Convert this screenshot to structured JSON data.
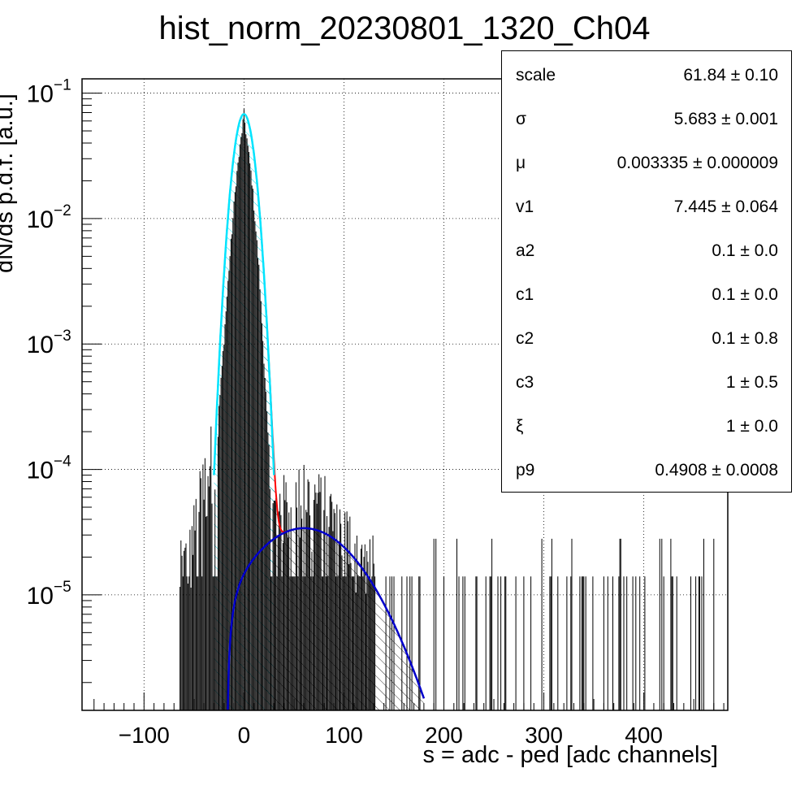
{
  "chart_data": {
    "type": "histogram",
    "title": "hist_norm_20230801_1320_Ch04",
    "xlabel": "s = adc - ped [adc channels]",
    "ylabel": "dN/ds p.d.f. [a.u.]",
    "xlim": [
      -162,
      484
    ],
    "ylim": [
      1.2e-06,
      0.13
    ],
    "yscale": "log",
    "grid": true,
    "x_ticks": [
      "-100",
      "0",
      "100",
      "200",
      "300",
      "400"
    ],
    "y_ticks": [
      {
        "base": "10",
        "exp": "−1"
      },
      {
        "base": "10",
        "exp": "−2"
      },
      {
        "base": "10",
        "exp": "−3"
      },
      {
        "base": "10",
        "exp": "−4"
      },
      {
        "base": "10",
        "exp": "−5"
      }
    ],
    "pedestal_peak": {
      "x": 0,
      "y": 0.068,
      "sigma": 5.683
    },
    "signal_peak": {
      "x": 60,
      "y": 3.4e-05
    },
    "histogram_profile": [
      {
        "x": -65,
        "y": 1.4e-05
      },
      {
        "x": -55,
        "y": 1.8e-05
      },
      {
        "x": -45,
        "y": 5e-05
      },
      {
        "x": -35,
        "y": 0.0001
      },
      {
        "x": -25,
        "y": 0.0003
      },
      {
        "x": -15,
        "y": 0.004
      },
      {
        "x": -8,
        "y": 0.02
      },
      {
        "x": 0,
        "y": 0.068
      },
      {
        "x": 8,
        "y": 0.02
      },
      {
        "x": 15,
        "y": 0.004
      },
      {
        "x": 22,
        "y": 0.0004
      },
      {
        "x": 28,
        "y": 4e-05
      },
      {
        "x": 40,
        "y": 5e-05
      },
      {
        "x": 60,
        "y": 6e-05
      },
      {
        "x": 80,
        "y": 5e-05
      },
      {
        "x": 100,
        "y": 3e-05
      },
      {
        "x": 120,
        "y": 2e-05
      },
      {
        "x": 140,
        "y": 1.4e-05
      },
      {
        "x": 160,
        "y": 1.4e-05
      },
      {
        "x": 200,
        "y": 1.4e-05
      },
      {
        "x": 270,
        "y": 1.4e-05
      },
      {
        "x": 370,
        "y": 1.4e-05
      },
      {
        "x": 480,
        "y": 1.4e-05
      }
    ],
    "series": [
      {
        "color": "#000000"
      },
      {
        "color": "#ff0000"
      },
      {
        "color": "#00ffff"
      },
      {
        "color": "#0000cc"
      }
    ],
    "stats": [
      {
        "name": "scale",
        "value": "61.84 ± 0.10"
      },
      {
        "name": "σ",
        "value": "5.683 ± 0.001"
      },
      {
        "name": "μ",
        "value": "0.003335 ± 0.000009"
      },
      {
        "name": "v1",
        "value": "7.445 ± 0.064"
      },
      {
        "name": "a2",
        "value": "0.1 ± 0.0"
      },
      {
        "name": "c1",
        "value": "0.1 ± 0.0"
      },
      {
        "name": "c2",
        "value": "0.1 ± 0.8"
      },
      {
        "name": "c3",
        "value": "1 ± 0.5"
      },
      {
        "name": "ξ",
        "value": "1 ± 0.0"
      },
      {
        "name": "p9",
        "value": "0.4908 ± 0.0008"
      }
    ]
  }
}
